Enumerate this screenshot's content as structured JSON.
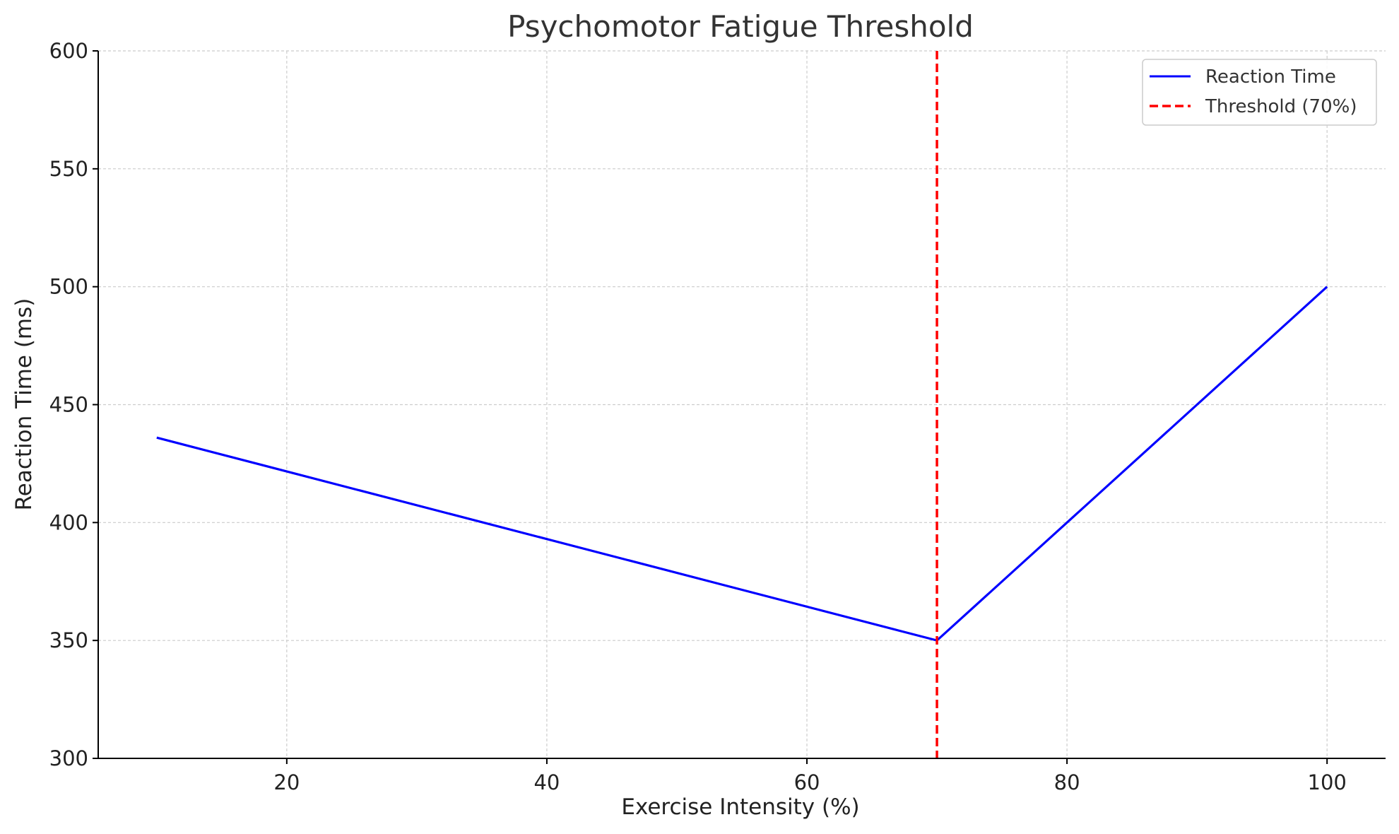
{
  "chart_data": {
    "type": "line",
    "title": "Psychomotor Fatigue Threshold",
    "xlabel": "Exercise Intensity (%)",
    "ylabel": "Reaction Time (ms)",
    "xlim": [
      5.5,
      104.5
    ],
    "ylim": [
      300,
      600
    ],
    "xticks": [
      20,
      40,
      60,
      80,
      100
    ],
    "yticks": [
      300,
      350,
      400,
      450,
      500,
      550,
      600
    ],
    "grid": true,
    "legend_position": "top-right",
    "series": [
      {
        "name": "Reaction Time",
        "color": "#0000ff",
        "style": "solid",
        "x": [
          10,
          70,
          100
        ],
        "y": [
          436,
          350,
          500
        ]
      }
    ],
    "vlines": [
      {
        "name": "Threshold (70%)",
        "x": 70,
        "color": "#ff0000",
        "style": "dashed"
      }
    ]
  }
}
